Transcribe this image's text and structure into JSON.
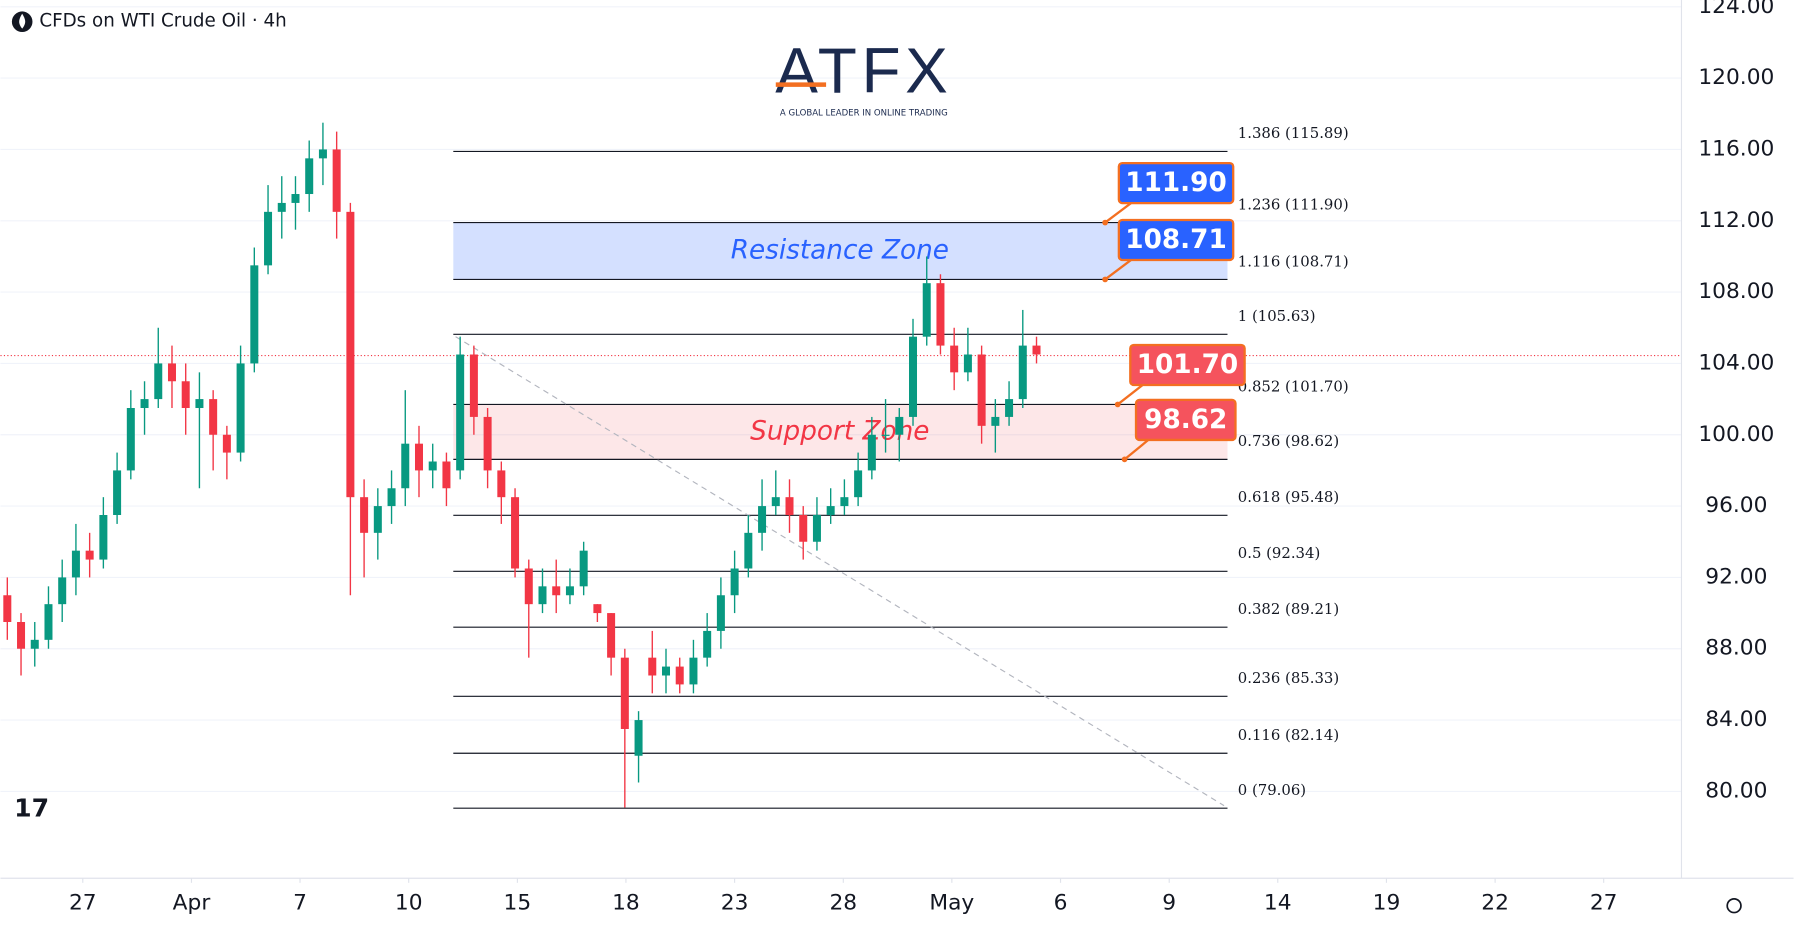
{
  "chart_data": {
    "type": "candlestick",
    "title": "CFDs on WTI Crude Oil · 4h",
    "up_color": "#089981",
    "down_color": "#f23645",
    "open": [
      91,
      89.5,
      88,
      88.5,
      90.5,
      92,
      93.5,
      93,
      95.5,
      98,
      101.5,
      102,
      104,
      103,
      101.5,
      102,
      100,
      99,
      104,
      109.5,
      112.5,
      113,
      113.5,
      115.5,
      116,
      112.5,
      96.5,
      94.5,
      96,
      97,
      99.5,
      98,
      98.5,
      98,
      104.5,
      101,
      98,
      96.5,
      92.5,
      90.5,
      91.5,
      91,
      91.5,
      90.5,
      90,
      87.5,
      82,
      87.5,
      86.5,
      87,
      86,
      87.5,
      89,
      91,
      92.5,
      94.5,
      96,
      96.5,
      95.5,
      94,
      95.5,
      96,
      96.5,
      98,
      100,
      100,
      101,
      105.5,
      108.5,
      105,
      103.5,
      104.5,
      100.5,
      101,
      102,
      105
    ],
    "high": [
      92,
      90,
      89.5,
      91.5,
      93,
      95,
      94.5,
      96.5,
      99,
      102.5,
      103,
      106,
      105,
      104,
      103.5,
      102.5,
      100.5,
      105,
      110.5,
      114,
      114.5,
      114.5,
      116.5,
      117.5,
      117,
      113,
      97.5,
      97,
      98,
      102.5,
      100.5,
      99.5,
      99,
      105.5,
      105,
      101.5,
      98.5,
      97,
      93,
      92.5,
      93,
      92.5,
      94,
      90.5,
      90,
      88,
      84.5,
      89,
      88,
      87.5,
      88.5,
      90,
      92,
      93.5,
      95.5,
      97.5,
      98,
      97.5,
      96,
      96.5,
      97,
      97.5,
      99,
      101,
      102,
      101.5,
      106.5,
      110,
      109,
      106,
      106,
      105,
      102,
      103,
      107,
      105.5
    ],
    "low": [
      88.5,
      86.5,
      87,
      88,
      89.5,
      91,
      92,
      92.5,
      95,
      97.5,
      100,
      101.5,
      101.5,
      100,
      97,
      98,
      97.5,
      98.5,
      103.5,
      109,
      111,
      111.5,
      112.5,
      114,
      111,
      91,
      92,
      93,
      95,
      96,
      96.5,
      97,
      96,
      97.5,
      100,
      97,
      95,
      92,
      87.5,
      90,
      90,
      90.5,
      91,
      89.5,
      86.5,
      79.1,
      80.5,
      85.5,
      85.5,
      85.5,
      85.5,
      87,
      88,
      90,
      92,
      93.5,
      95.5,
      94.5,
      93,
      93.5,
      95,
      95.5,
      96,
      97.5,
      99,
      98.5,
      100.5,
      105,
      104.5,
      102.5,
      103,
      99.5,
      99,
      100.5,
      101.5,
      104
    ],
    "close": [
      89.5,
      88,
      88.5,
      90.5,
      92,
      93.5,
      93,
      95.5,
      98,
      101.5,
      102,
      104,
      103,
      101.5,
      102,
      100,
      99,
      104,
      109.5,
      112.5,
      113,
      113.5,
      115.5,
      116,
      112.5,
      96.5,
      94.5,
      96,
      97,
      99.5,
      98,
      98.5,
      97,
      104.5,
      101,
      98,
      96.5,
      92.5,
      90.5,
      91.5,
      91,
      91.5,
      93.5,
      90,
      87.5,
      83.5,
      84,
      86.5,
      87,
      86,
      87.5,
      89,
      91,
      92.5,
      94.5,
      96,
      96.5,
      95.5,
      94,
      95.5,
      96,
      96.5,
      98,
      100,
      100,
      101,
      105.5,
      108.5,
      105,
      103.5,
      104.5,
      100.5,
      101,
      102,
      105,
      104.5
    ],
    "xlim": [
      0,
      122.5
    ],
    "xticks": [
      {
        "value": 6,
        "label": "27"
      },
      {
        "value": 13.92,
        "label": "Apr"
      },
      {
        "value": 21.83,
        "label": "7"
      },
      {
        "value": 29.75,
        "label": "10"
      },
      {
        "value": 37.67,
        "label": "15"
      },
      {
        "value": 45.58,
        "label": "18"
      },
      {
        "value": 53.5,
        "label": "23"
      },
      {
        "value": 61.42,
        "label": "28"
      },
      {
        "value": 69.33,
        "label": "May"
      },
      {
        "value": 77.25,
        "label": "6"
      },
      {
        "value": 85.17,
        "label": "9"
      },
      {
        "value": 93.08,
        "label": "14"
      },
      {
        "value": 101,
        "label": "19"
      },
      {
        "value": 108.92,
        "label": "22"
      },
      {
        "value": 116.83,
        "label": "27"
      }
    ],
    "ylim": [
      75.13,
      124.38
    ],
    "yticks": [
      {
        "value": 80,
        "label": "80.00"
      },
      {
        "value": 84,
        "label": "84.00"
      },
      {
        "value": 88,
        "label": "88.00"
      },
      {
        "value": 92,
        "label": "92.00"
      },
      {
        "value": 96,
        "label": "96.00"
      },
      {
        "value": 100,
        "label": "100.00"
      },
      {
        "value": 104,
        "label": "104.00"
      },
      {
        "value": 108,
        "label": "108.00"
      },
      {
        "value": 112,
        "label": "112.00"
      },
      {
        "value": 116,
        "label": "116.00"
      },
      {
        "value": 120,
        "label": "120.00"
      },
      {
        "value": 124,
        "label": "124.00"
      }
    ],
    "grid": true,
    "current_price": 104.44,
    "trendline": [
      105.5,
      79.2
    ],
    "fib_levels": [
      {
        "label": "1.386 (115.89)",
        "value": 115.89
      },
      {
        "label": "1.236 (111.90)",
        "value": 111.9
      },
      {
        "label": "1.116 (108.71)",
        "value": 108.71
      },
      {
        "label": "1 (105.63)",
        "value": 105.63
      },
      {
        "label": "0.852 (101.70)",
        "value": 101.7
      },
      {
        "label": "0.736 (98.62)",
        "value": 98.62
      },
      {
        "label": "0.618 (95.48)",
        "value": 95.48
      },
      {
        "label": "0.5 (92.34)",
        "value": 92.34
      },
      {
        "label": "0.382 (89.21)",
        "value": 89.21
      },
      {
        "label": "0.236 (85.33)",
        "value": 85.33
      },
      {
        "label": "0.116 (82.14)",
        "value": 82.14
      },
      {
        "label": "0 (79.06)",
        "value": 79.06
      }
    ],
    "zones": [
      {
        "label": "Resistance Zone",
        "low": 108.71,
        "high": 111.9,
        "color": "#2962ff"
      },
      {
        "label": "Support Zone",
        "low": 98.62,
        "high": 101.7,
        "color": "#f23645"
      }
    ],
    "price_tags": [
      {
        "label": "111.90",
        "value": 111.9,
        "color": "#2962ff"
      },
      {
        "label": "108.71",
        "value": 108.71,
        "color": "#2962ff"
      },
      {
        "label": "101.70",
        "value": 101.7,
        "color": "#f5535d"
      },
      {
        "label": "98.62",
        "value": 98.62,
        "color": "#f5535d"
      }
    ]
  },
  "logo": {
    "name": "ATFX",
    "tagline": "A GLOBAL LEADER IN ONLINE TRADING"
  }
}
